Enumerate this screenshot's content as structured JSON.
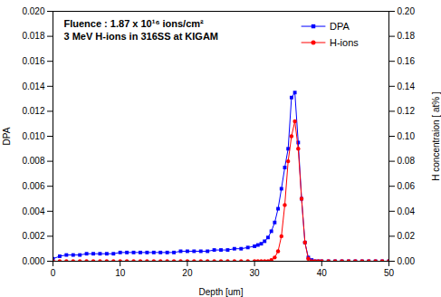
{
  "chart_data": {
    "type": "line",
    "annotations": [
      "Fluence : 1.87 x 10¹⁶ ions/cm²",
      "3 MeV H-ions in 316SS at KIGAM"
    ],
    "x_label": "Depth [um]",
    "y_label": "DPA",
    "y2_label": "H concentraion [ at% ]",
    "xlim": [
      0,
      50
    ],
    "xticks": [
      0,
      10,
      20,
      30,
      40,
      50
    ],
    "ylim": [
      0,
      0.02
    ],
    "yticks": [
      {
        "value": 0,
        "label": "0.000"
      },
      {
        "value": 0.002,
        "label": "0.002"
      },
      {
        "value": 0.004,
        "label": "0.004"
      },
      {
        "value": 0.006,
        "label": "0.006"
      },
      {
        "value": 0.008,
        "label": "0.008"
      },
      {
        "value": 0.01,
        "label": "0.010"
      },
      {
        "value": 0.012,
        "label": "0.012"
      },
      {
        "value": 0.014,
        "label": "0.014"
      },
      {
        "value": 0.016,
        "label": "0.016"
      },
      {
        "value": 0.018,
        "label": "0.018"
      },
      {
        "value": 0.02,
        "label": "0.020"
      }
    ],
    "y2lim": [
      0,
      0.2
    ],
    "y2ticks": [
      {
        "value": 0,
        "label": "0.00"
      },
      {
        "value": 0.02,
        "label": "0.02"
      },
      {
        "value": 0.04,
        "label": "0.04"
      },
      {
        "value": 0.06,
        "label": "0.06"
      },
      {
        "value": 0.08,
        "label": "0.08"
      },
      {
        "value": 0.1,
        "label": "0.10"
      },
      {
        "value": 0.12,
        "label": "0.12"
      },
      {
        "value": 0.14,
        "label": "0.14"
      },
      {
        "value": 0.16,
        "label": "0.16"
      },
      {
        "value": 0.18,
        "label": "0.18"
      },
      {
        "value": 0.2,
        "label": "0.20"
      }
    ],
    "grid": false,
    "legend": "upper right",
    "x": [
      0,
      1,
      2,
      3,
      4,
      5,
      6,
      7,
      8,
      9,
      10,
      11,
      12,
      13,
      14,
      15,
      16,
      17,
      18,
      19,
      20,
      21,
      22,
      23,
      24,
      25,
      26,
      27,
      28,
      29,
      30,
      30.5,
      31,
      31.5,
      32,
      32.5,
      33,
      33.5,
      34,
      34.5,
      35,
      35.5,
      36,
      36.5,
      37,
      37.5,
      38,
      38.5,
      39,
      39.5,
      40,
      41,
      42,
      43,
      44,
      45,
      46,
      47,
      48,
      49,
      50
    ],
    "series": [
      {
        "name": "DPA",
        "color": "#0000ff",
        "marker": "square",
        "line_style": "solid",
        "values": [
          0.0002,
          0.0004,
          0.0005,
          0.0005,
          0.0005,
          0.0006,
          0.0006,
          0.0006,
          0.0006,
          0.0006,
          0.0007,
          0.0007,
          0.0007,
          0.0007,
          0.0007,
          0.0007,
          0.0007,
          0.0007,
          0.0007,
          0.0008,
          0.0008,
          0.0008,
          0.0008,
          0.0008,
          0.0009,
          0.0009,
          0.0009,
          0.001,
          0.001,
          0.0011,
          0.0012,
          0.0013,
          0.0014,
          0.0016,
          0.0019,
          0.0024,
          0.0031,
          0.0042,
          0.0058,
          0.0075,
          0.009,
          0.0131,
          0.0135,
          0.0095,
          0.005,
          0.0015,
          0.0003,
          0.0001,
          0,
          0,
          0,
          0,
          0,
          0,
          0,
          0,
          0,
          0,
          0,
          0,
          0
        ]
      },
      {
        "name": "H-ions",
        "color": "#ff0000",
        "marker": "circle",
        "line_style": "solid",
        "axis": "y2",
        "values": [
          0,
          0,
          0,
          0,
          0,
          0,
          0,
          0,
          0,
          0,
          0,
          0,
          0,
          0,
          0,
          0,
          0,
          0,
          0,
          0,
          0,
          0,
          0,
          0,
          0,
          0,
          0,
          0,
          0,
          0,
          0,
          0,
          0,
          0,
          0,
          0.001,
          0.003,
          0.008,
          0.02,
          0.045,
          0.08,
          0.1,
          0.112,
          0.09,
          0.05,
          0.015,
          0.002,
          0,
          0,
          0,
          0,
          0,
          0,
          0,
          0,
          0,
          0,
          0,
          0,
          0,
          0
        ]
      }
    ]
  }
}
